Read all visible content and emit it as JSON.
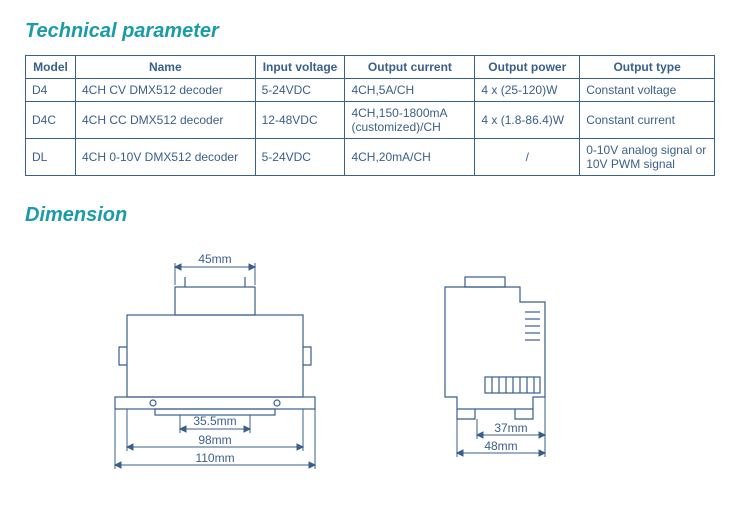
{
  "colors": {
    "title": "#1a9ba8",
    "table_border": "#3a5f8a",
    "table_text": "#3a5f8a",
    "diagram_stroke": "#3a5f8a",
    "diagram_text": "#3a5f8a"
  },
  "section1_title": "Technical parameter",
  "section2_title": "Dimension",
  "table": {
    "columns": [
      "Model",
      "Name",
      "Input voltage",
      "Output current",
      "Output power",
      "Output type"
    ],
    "rows": [
      [
        "D4",
        "4CH CV DMX512 decoder",
        "5-24VDC",
        "4CH,5A/CH",
        "4 x (25-120)W",
        "Constant voltage"
      ],
      [
        "D4C",
        "4CH CC DMX512 decoder",
        "12-48VDC",
        "4CH,150-1800mA (customized)/CH",
        "4 x (1.8-86.4)W",
        "Constant current"
      ],
      [
        "DL",
        "4CH 0-10V DMX512 decoder",
        "5-24VDC",
        "4CH,20mA/CH",
        "/",
        "0-10V analog signal or 10V PWM signal"
      ]
    ],
    "col_widths": [
      "50px",
      "180px",
      "90px",
      "130px",
      "105px",
      "135px"
    ]
  },
  "front_view": {
    "top_width": "45mm",
    "inner_width": "35.5mm",
    "mid_width": "98mm",
    "outer_width": "110mm"
  },
  "side_view": {
    "inner_depth": "37mm",
    "outer_depth": "48mm"
  }
}
